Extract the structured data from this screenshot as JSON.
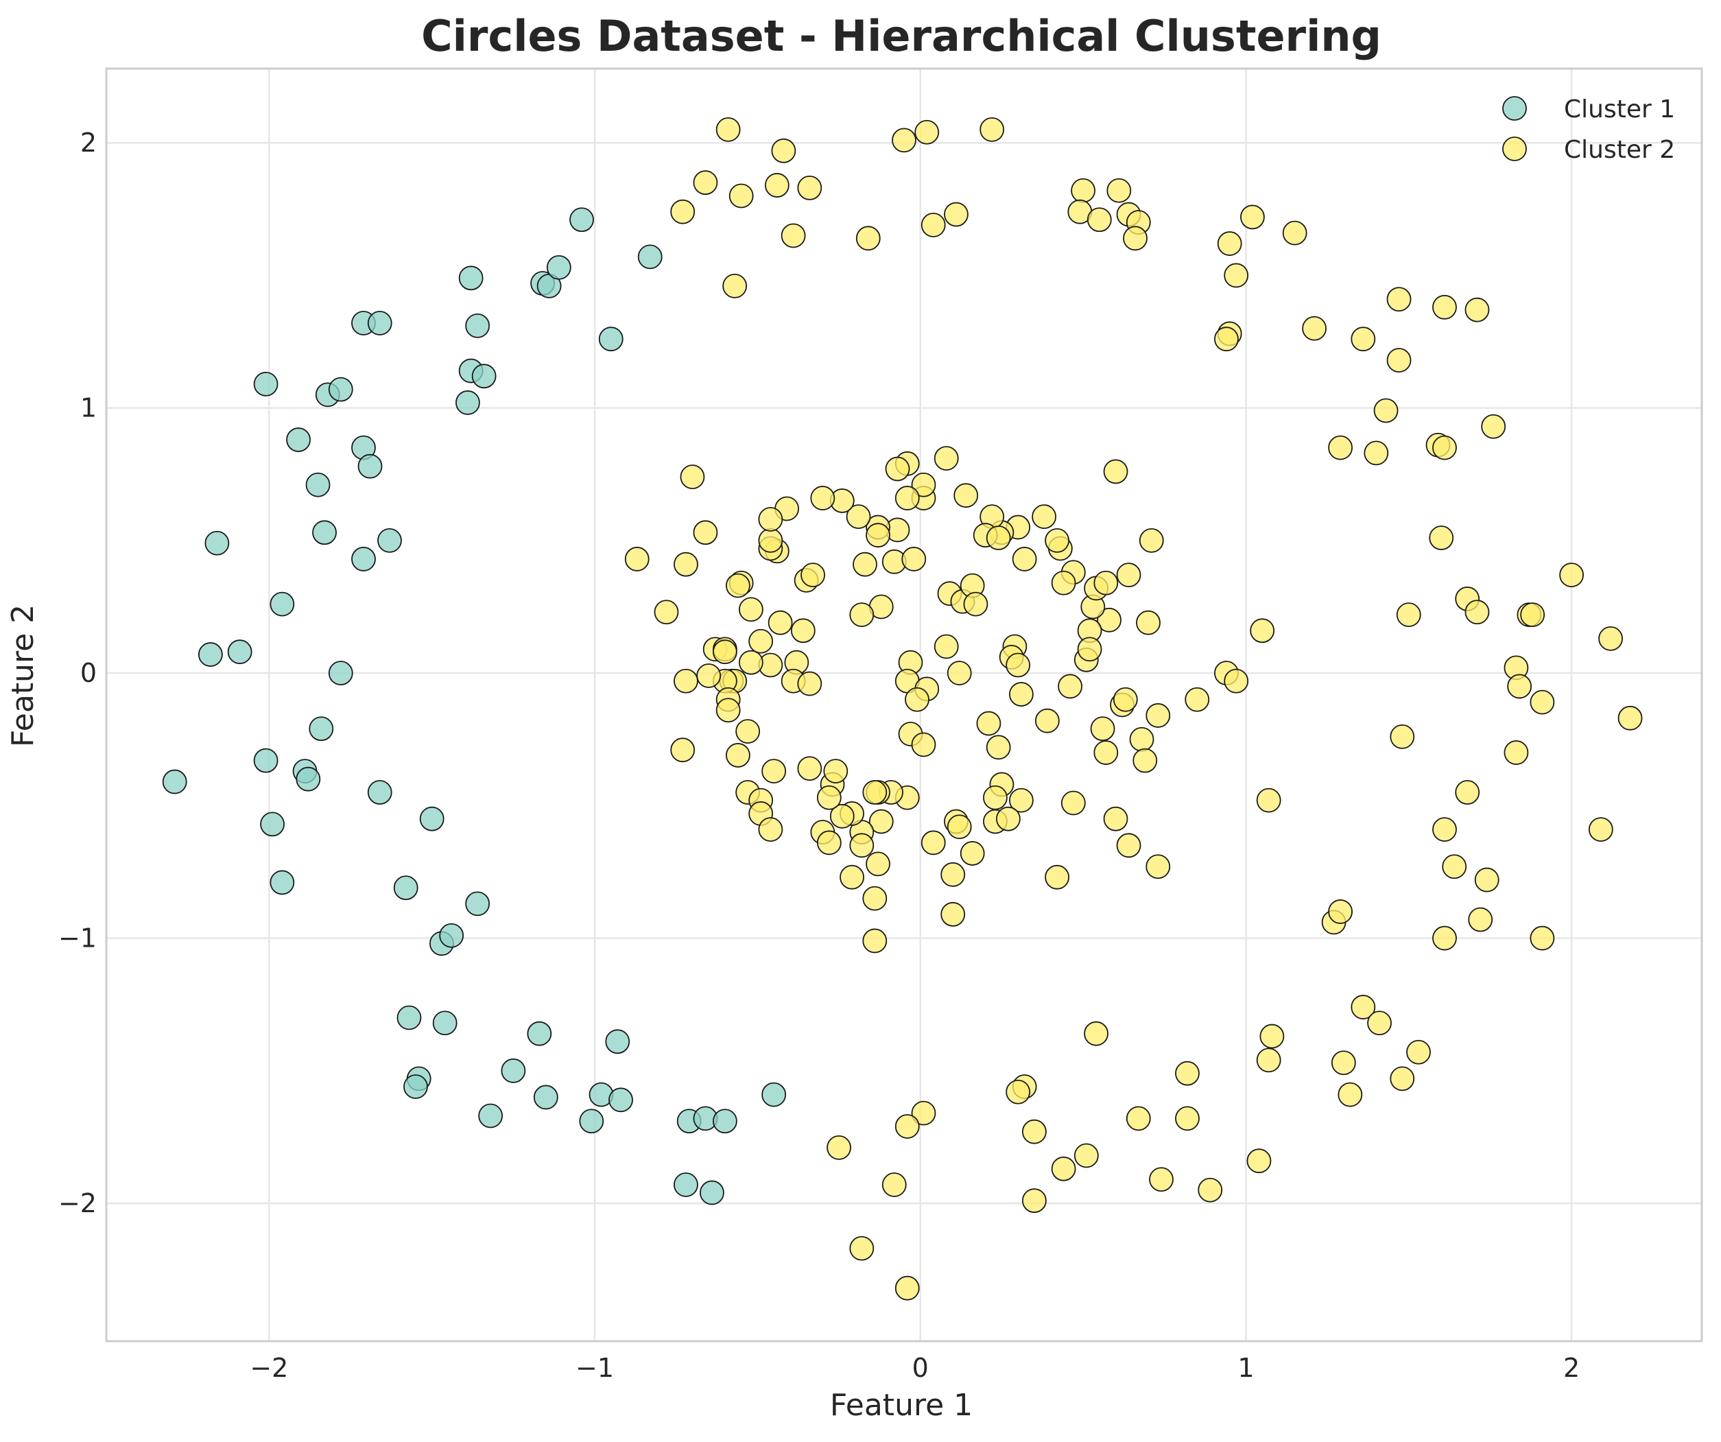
{
  "chart_data": {
    "type": "scatter",
    "title": "Circles Dataset - Hierarchical Clustering",
    "xlabel": "Feature 1",
    "ylabel": "Feature 2",
    "xlim": [
      -2.5,
      2.4
    ],
    "ylim": [
      -2.52,
      2.28
    ],
    "xticks": [
      -2,
      -1,
      0,
      1,
      2
    ],
    "yticks": [
      -2,
      -1,
      0,
      1,
      2
    ],
    "xtick_labels": [
      "−2",
      "−1",
      "0",
      "1",
      "2"
    ],
    "ytick_labels": [
      "−2",
      "−1",
      "0",
      "1",
      "2"
    ],
    "grid": true,
    "legend_position": "top-right",
    "series": [
      {
        "name": "Cluster 1",
        "color": "#8dd3c7",
        "points": [
          [
            -2.01,
            1.09
          ],
          [
            -1.91,
            0.88
          ],
          [
            -1.85,
            0.71
          ],
          [
            -1.83,
            0.53
          ],
          [
            -2.16,
            0.49
          ],
          [
            -1.96,
            0.26
          ],
          [
            -2.18,
            0.07
          ],
          [
            -2.09,
            0.08
          ],
          [
            -1.78,
            0.0
          ],
          [
            -1.84,
            -0.21
          ],
          [
            -2.01,
            -0.33
          ],
          [
            -1.89,
            -0.37
          ],
          [
            -1.88,
            -0.4
          ],
          [
            -2.29,
            -0.41
          ],
          [
            -1.99,
            -0.57
          ],
          [
            -1.96,
            -0.79
          ],
          [
            -1.66,
            -0.45
          ],
          [
            -1.5,
            -0.55
          ],
          [
            -1.58,
            -0.81
          ],
          [
            -1.36,
            -0.87
          ],
          [
            -1.47,
            -1.02
          ],
          [
            -1.44,
            -0.99
          ],
          [
            -1.57,
            -1.3
          ],
          [
            -1.46,
            -1.32
          ],
          [
            -1.54,
            -1.53
          ],
          [
            -1.55,
            -1.56
          ],
          [
            -1.32,
            -1.67
          ],
          [
            -1.25,
            -1.5
          ],
          [
            -1.17,
            -1.36
          ],
          [
            -1.15,
            -1.6
          ],
          [
            -1.01,
            -1.69
          ],
          [
            -0.98,
            -1.59
          ],
          [
            -0.93,
            -1.39
          ],
          [
            -0.92,
            -1.61
          ],
          [
            -0.71,
            -1.69
          ],
          [
            -0.66,
            -1.68
          ],
          [
            -0.6,
            -1.69
          ],
          [
            -0.72,
            -1.93
          ],
          [
            -0.64,
            -1.96
          ],
          [
            -0.45,
            -1.59
          ],
          [
            -1.71,
            1.32
          ],
          [
            -1.66,
            1.32
          ],
          [
            -1.38,
            1.49
          ],
          [
            -1.36,
            1.31
          ],
          [
            -1.38,
            1.14
          ],
          [
            -1.34,
            1.12
          ],
          [
            -1.39,
            1.02
          ],
          [
            -1.82,
            1.05
          ],
          [
            -1.78,
            1.07
          ],
          [
            -1.71,
            0.85
          ],
          [
            -1.69,
            0.78
          ],
          [
            -1.71,
            0.43
          ],
          [
            -1.63,
            0.5
          ],
          [
            -1.16,
            1.47
          ],
          [
            -1.14,
            1.46
          ],
          [
            -1.11,
            1.53
          ],
          [
            -1.04,
            1.71
          ],
          [
            -0.95,
            1.26
          ],
          [
            -0.83,
            1.57
          ]
        ]
      },
      {
        "name": "Cluster 2",
        "color": "#ffed6f",
        "points": [
          [
            -0.59,
            2.05
          ],
          [
            -0.42,
            1.97
          ],
          [
            -0.66,
            1.85
          ],
          [
            -0.73,
            1.74
          ],
          [
            -0.55,
            1.8
          ],
          [
            -0.44,
            1.84
          ],
          [
            -0.34,
            1.83
          ],
          [
            -0.39,
            1.65
          ],
          [
            -0.57,
            1.46
          ],
          [
            -0.16,
            1.64
          ],
          [
            -0.05,
            2.01
          ],
          [
            0.02,
            2.04
          ],
          [
            0.22,
            2.05
          ],
          [
            0.04,
            1.69
          ],
          [
            0.11,
            1.73
          ],
          [
            0.5,
            1.82
          ],
          [
            0.61,
            1.82
          ],
          [
            0.49,
            1.74
          ],
          [
            0.55,
            1.71
          ],
          [
            0.64,
            1.73
          ],
          [
            0.67,
            1.7
          ],
          [
            0.66,
            1.64
          ],
          [
            1.02,
            1.72
          ],
          [
            1.15,
            1.66
          ],
          [
            0.95,
            1.62
          ],
          [
            0.97,
            1.5
          ],
          [
            0.95,
            1.28
          ],
          [
            0.94,
            1.26
          ],
          [
            1.21,
            1.3
          ],
          [
            1.36,
            1.26
          ],
          [
            1.47,
            1.41
          ],
          [
            1.61,
            1.38
          ],
          [
            1.71,
            1.37
          ],
          [
            1.47,
            1.18
          ],
          [
            1.43,
            0.99
          ],
          [
            1.29,
            0.85
          ],
          [
            1.4,
            0.83
          ],
          [
            1.59,
            0.86
          ],
          [
            1.61,
            0.85
          ],
          [
            1.76,
            0.93
          ],
          [
            1.6,
            0.51
          ],
          [
            1.68,
            0.28
          ],
          [
            1.71,
            0.23
          ],
          [
            1.5,
            0.22
          ],
          [
            1.87,
            0.22
          ],
          [
            1.88,
            0.22
          ],
          [
            2.0,
            0.37
          ],
          [
            2.12,
            0.13
          ],
          [
            1.83,
            0.02
          ],
          [
            1.84,
            -0.05
          ],
          [
            1.91,
            -0.11
          ],
          [
            2.18,
            -0.17
          ],
          [
            1.48,
            -0.24
          ],
          [
            1.83,
            -0.3
          ],
          [
            1.68,
            -0.45
          ],
          [
            1.61,
            -0.59
          ],
          [
            1.64,
            -0.73
          ],
          [
            1.74,
            -0.78
          ],
          [
            2.09,
            -0.59
          ],
          [
            1.72,
            -0.93
          ],
          [
            1.61,
            -1.0
          ],
          [
            1.91,
            -1.0
          ],
          [
            1.27,
            -0.94
          ],
          [
            1.29,
            -0.9
          ],
          [
            1.36,
            -1.26
          ],
          [
            1.41,
            -1.32
          ],
          [
            1.53,
            -1.43
          ],
          [
            1.48,
            -1.53
          ],
          [
            1.3,
            -1.47
          ],
          [
            1.32,
            -1.59
          ],
          [
            1.07,
            -1.46
          ],
          [
            1.08,
            -1.37
          ],
          [
            1.04,
            -1.84
          ],
          [
            0.89,
            -1.95
          ],
          [
            0.82,
            -1.68
          ],
          [
            0.82,
            -1.51
          ],
          [
            0.74,
            -1.91
          ],
          [
            0.67,
            -1.68
          ],
          [
            0.54,
            -1.36
          ],
          [
            0.51,
            -1.82
          ],
          [
            0.44,
            -1.87
          ],
          [
            0.35,
            -1.73
          ],
          [
            0.35,
            -1.99
          ],
          [
            0.32,
            -1.56
          ],
          [
            0.3,
            -1.58
          ],
          [
            0.01,
            -1.66
          ],
          [
            -0.04,
            -1.71
          ],
          [
            -0.08,
            -1.93
          ],
          [
            -0.25,
            -1.79
          ],
          [
            -0.18,
            -2.17
          ],
          [
            -0.04,
            -2.32
          ],
          [
            1.05,
            0.16
          ],
          [
            0.94,
            0.0
          ],
          [
            0.97,
            -0.03
          ],
          [
            0.85,
            -0.1
          ],
          [
            1.07,
            -0.48
          ],
          [
            0.71,
            0.5
          ],
          [
            0.7,
            0.19
          ],
          [
            0.73,
            -0.16
          ],
          [
            0.68,
            -0.25
          ],
          [
            0.69,
            -0.33
          ],
          [
            0.6,
            0.76
          ],
          [
            0.64,
            0.37
          ],
          [
            0.58,
            0.2
          ],
          [
            0.62,
            -0.12
          ],
          [
            0.63,
            -0.1
          ],
          [
            0.56,
            -0.21
          ],
          [
            0.57,
            -0.3
          ],
          [
            0.6,
            -0.55
          ],
          [
            0.64,
            -0.65
          ],
          [
            0.73,
            -0.73
          ],
          [
            0.51,
            0.05
          ],
          [
            0.52,
            0.16
          ],
          [
            0.53,
            0.25
          ],
          [
            0.54,
            0.32
          ],
          [
            0.57,
            0.34
          ],
          [
            0.52,
            0.09
          ],
          [
            0.47,
            0.38
          ],
          [
            0.43,
            0.47
          ],
          [
            0.42,
            0.5
          ],
          [
            0.44,
            0.34
          ],
          [
            0.38,
            0.59
          ],
          [
            0.32,
            0.43
          ],
          [
            0.3,
            0.55
          ],
          [
            0.25,
            0.53
          ],
          [
            0.22,
            0.59
          ],
          [
            0.2,
            0.52
          ],
          [
            0.24,
            0.51
          ],
          [
            0.29,
            0.1
          ],
          [
            0.28,
            0.06
          ],
          [
            0.3,
            0.03
          ],
          [
            0.31,
            -0.08
          ],
          [
            0.21,
            -0.19
          ],
          [
            0.24,
            -0.28
          ],
          [
            0.25,
            -0.42
          ],
          [
            0.23,
            -0.47
          ],
          [
            0.23,
            -0.56
          ],
          [
            0.31,
            -0.48
          ],
          [
            0.27,
            -0.55
          ],
          [
            0.39,
            -0.18
          ],
          [
            0.46,
            -0.05
          ],
          [
            0.47,
            -0.49
          ],
          [
            0.42,
            -0.77
          ],
          [
            0.14,
            0.67
          ],
          [
            0.08,
            0.81
          ],
          [
            0.09,
            0.3
          ],
          [
            0.13,
            0.27
          ],
          [
            0.16,
            0.33
          ],
          [
            0.17,
            0.26
          ],
          [
            0.08,
            0.1
          ],
          [
            0.12,
            0.0
          ],
          [
            0.01,
            0.66
          ],
          [
            0.01,
            0.71
          ],
          [
            -0.04,
            0.66
          ],
          [
            -0.04,
            0.79
          ],
          [
            -0.07,
            0.77
          ],
          [
            -0.07,
            0.54
          ],
          [
            -0.08,
            0.42
          ],
          [
            -0.02,
            0.43
          ],
          [
            -0.13,
            0.55
          ],
          [
            -0.13,
            0.52
          ],
          [
            -0.17,
            0.41
          ],
          [
            -0.19,
            0.59
          ],
          [
            -0.24,
            0.65
          ],
          [
            -0.3,
            0.66
          ],
          [
            -0.12,
            0.25
          ],
          [
            -0.18,
            0.22
          ],
          [
            -0.03,
            0.04
          ],
          [
            -0.04,
            -0.03
          ],
          [
            0.02,
            -0.06
          ],
          [
            -0.01,
            -0.1
          ],
          [
            -0.03,
            -0.23
          ],
          [
            0.01,
            -0.27
          ],
          [
            -0.04,
            -0.47
          ],
          [
            -0.09,
            -0.45
          ],
          [
            -0.13,
            -0.45
          ],
          [
            -0.12,
            -0.56
          ],
          [
            -0.14,
            -0.45
          ],
          [
            -0.18,
            -0.6
          ],
          [
            -0.18,
            -0.65
          ],
          [
            -0.13,
            -0.72
          ],
          [
            -0.14,
            -0.85
          ],
          [
            -0.21,
            -0.53
          ],
          [
            -0.24,
            -0.54
          ],
          [
            -0.27,
            -0.42
          ],
          [
            -0.26,
            -0.37
          ],
          [
            -0.28,
            -0.47
          ],
          [
            -0.3,
            -0.6
          ],
          [
            -0.28,
            -0.64
          ],
          [
            -0.21,
            -0.77
          ],
          [
            -0.14,
            -1.01
          ],
          [
            0.04,
            -0.64
          ],
          [
            0.11,
            -0.56
          ],
          [
            0.12,
            -0.58
          ],
          [
            0.16,
            -0.68
          ],
          [
            0.1,
            -0.76
          ],
          [
            0.1,
            -0.91
          ],
          [
            -0.35,
            0.35
          ],
          [
            -0.33,
            0.37
          ],
          [
            -0.41,
            0.62
          ],
          [
            -0.44,
            0.46
          ],
          [
            -0.46,
            0.47
          ],
          [
            -0.46,
            0.5
          ],
          [
            -0.46,
            0.58
          ],
          [
            -0.43,
            0.19
          ],
          [
            -0.36,
            0.16
          ],
          [
            -0.38,
            0.04
          ],
          [
            -0.39,
            -0.03
          ],
          [
            -0.34,
            -0.04
          ],
          [
            -0.46,
            0.03
          ],
          [
            -0.52,
            0.04
          ],
          [
            -0.49,
            0.12
          ],
          [
            -0.52,
            0.24
          ],
          [
            -0.55,
            0.34
          ],
          [
            -0.56,
            0.33
          ],
          [
            -0.66,
            0.53
          ],
          [
            -0.7,
            0.74
          ],
          [
            -0.72,
            0.41
          ],
          [
            -0.78,
            0.23
          ],
          [
            -0.87,
            0.43
          ],
          [
            -0.63,
            0.09
          ],
          [
            -0.6,
            0.09
          ],
          [
            -0.6,
            0.08
          ],
          [
            -0.58,
            -0.03
          ],
          [
            -0.57,
            -0.03
          ],
          [
            -0.6,
            -0.03
          ],
          [
            -0.65,
            -0.01
          ],
          [
            -0.72,
            -0.03
          ],
          [
            -0.59,
            -0.1
          ],
          [
            -0.59,
            -0.14
          ],
          [
            -0.53,
            -0.22
          ],
          [
            -0.56,
            -0.31
          ],
          [
            -0.73,
            -0.29
          ],
          [
            -0.45,
            -0.37
          ],
          [
            -0.53,
            -0.45
          ],
          [
            -0.49,
            -0.48
          ],
          [
            -0.49,
            -0.53
          ],
          [
            -0.46,
            -0.59
          ],
          [
            -0.34,
            -0.36
          ]
        ]
      }
    ]
  }
}
